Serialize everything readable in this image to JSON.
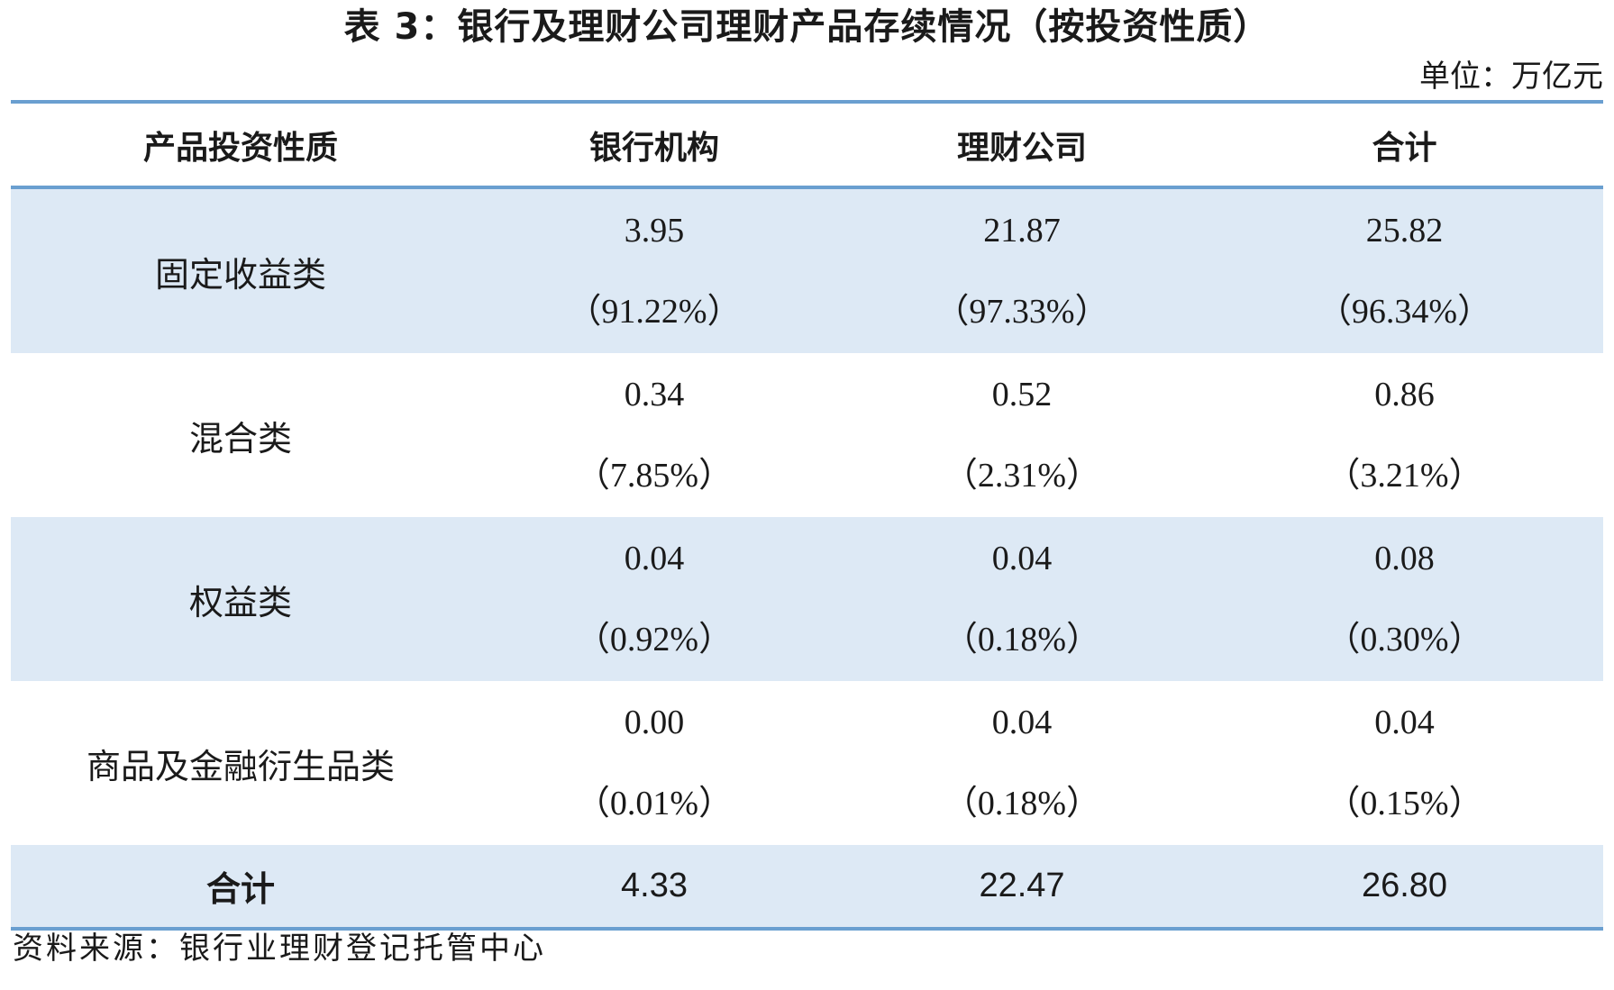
{
  "title": "表 3：银行及理财公司理财产品存续情况（按投资性质）",
  "unit": "单位：万亿元",
  "table": {
    "headers": [
      "产品投资性质",
      "银行机构",
      "理财公司",
      "合计"
    ],
    "rows": [
      {
        "label": "固定收益类",
        "cells": [
          {
            "value": "3.95",
            "pct": "（91.22%）"
          },
          {
            "value": "21.87",
            "pct": "（97.33%）"
          },
          {
            "value": "25.82",
            "pct": "（96.34%）"
          }
        ]
      },
      {
        "label": "混合类",
        "cells": [
          {
            "value": "0.34",
            "pct": "（7.85%）"
          },
          {
            "value": "0.52",
            "pct": "（2.31%）"
          },
          {
            "value": "0.86",
            "pct": "（3.21%）"
          }
        ]
      },
      {
        "label": "权益类",
        "cells": [
          {
            "value": "0.04",
            "pct": "（0.92%）"
          },
          {
            "value": "0.04",
            "pct": "（0.18%）"
          },
          {
            "value": "0.08",
            "pct": "（0.30%）"
          }
        ]
      },
      {
        "label": "商品及金融衍生品类",
        "cells": [
          {
            "value": "0.00",
            "pct": "（0.01%）"
          },
          {
            "value": "0.04",
            "pct": "（0.18%）"
          },
          {
            "value": "0.04",
            "pct": "（0.15%）"
          }
        ]
      }
    ],
    "total": {
      "label": "合计",
      "values": [
        "4.33",
        "22.47",
        "26.80"
      ]
    }
  },
  "source": "资料来源：银行业理财登记托管中心",
  "colors": {
    "rule": "#6a9fd0",
    "shade": "#dde9f5"
  }
}
